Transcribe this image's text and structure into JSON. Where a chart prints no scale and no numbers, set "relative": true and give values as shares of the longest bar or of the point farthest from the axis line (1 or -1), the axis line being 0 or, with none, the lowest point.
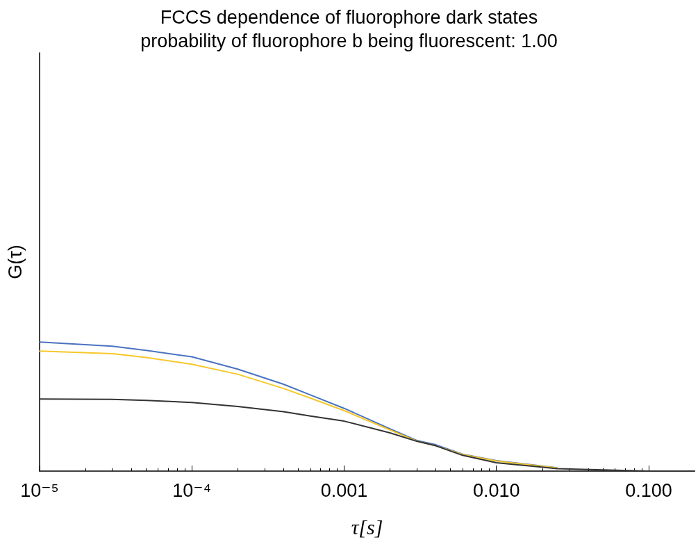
{
  "chart_data": {
    "type": "line",
    "title": "FCCS dependence of fluorophore dark states",
    "subtitle": "probability of fluorophore b being fluorescent: 1.00",
    "xlabel": "τ[s]",
    "ylabel": "G(τ)",
    "log": "x",
    "relative": true,
    "grid": false,
    "marker": "none",
    "line_style": "solid",
    "xlim": [
      1e-05,
      0.2
    ],
    "xticks": [
      {
        "value": 1e-05,
        "label": "10⁻⁵"
      },
      {
        "value": 0.0001,
        "label": "10⁻⁴"
      },
      {
        "value": 0.001,
        "label": "0.001"
      },
      {
        "value": 0.01,
        "label": "0.010"
      },
      {
        "value": 0.1,
        "label": "0.100"
      }
    ],
    "series": [
      {
        "color": "#4a72c0",
        "x": [
          1e-05,
          3e-05,
          5e-05,
          0.0001,
          0.0002,
          0.0004,
          0.0006,
          0.001,
          0.002,
          0.003,
          0.004,
          0.006,
          0.01,
          0.025
        ],
        "values": [
          1.0,
          0.967,
          0.935,
          0.885,
          0.79,
          0.673,
          0.59,
          0.486,
          0.328,
          0.237,
          0.204,
          0.131,
          0.081,
          0.025
        ]
      },
      {
        "color": "#f5c82a",
        "x": [
          1e-05,
          3e-05,
          5e-05,
          0.0001,
          0.0002,
          0.0004,
          0.0006,
          0.001,
          0.002,
          0.003,
          0.004,
          0.006,
          0.01,
          0.025
        ],
        "values": [
          0.93,
          0.91,
          0.88,
          0.828,
          0.75,
          0.64,
          0.565,
          0.468,
          0.318,
          0.232,
          0.196,
          0.128,
          0.078,
          0.024
        ]
      },
      {
        "color": "#333333",
        "x": [
          1e-05,
          3e-05,
          5e-05,
          0.0001,
          0.0002,
          0.0004,
          0.0006,
          0.001,
          0.002,
          0.003,
          0.004,
          0.006,
          0.01,
          0.025,
          0.1,
          0.2
        ],
        "values": [
          0.559,
          0.556,
          0.548,
          0.532,
          0.5,
          0.46,
          0.427,
          0.387,
          0.296,
          0.231,
          0.196,
          0.122,
          0.065,
          0.019,
          0,
          0
        ]
      }
    ]
  }
}
